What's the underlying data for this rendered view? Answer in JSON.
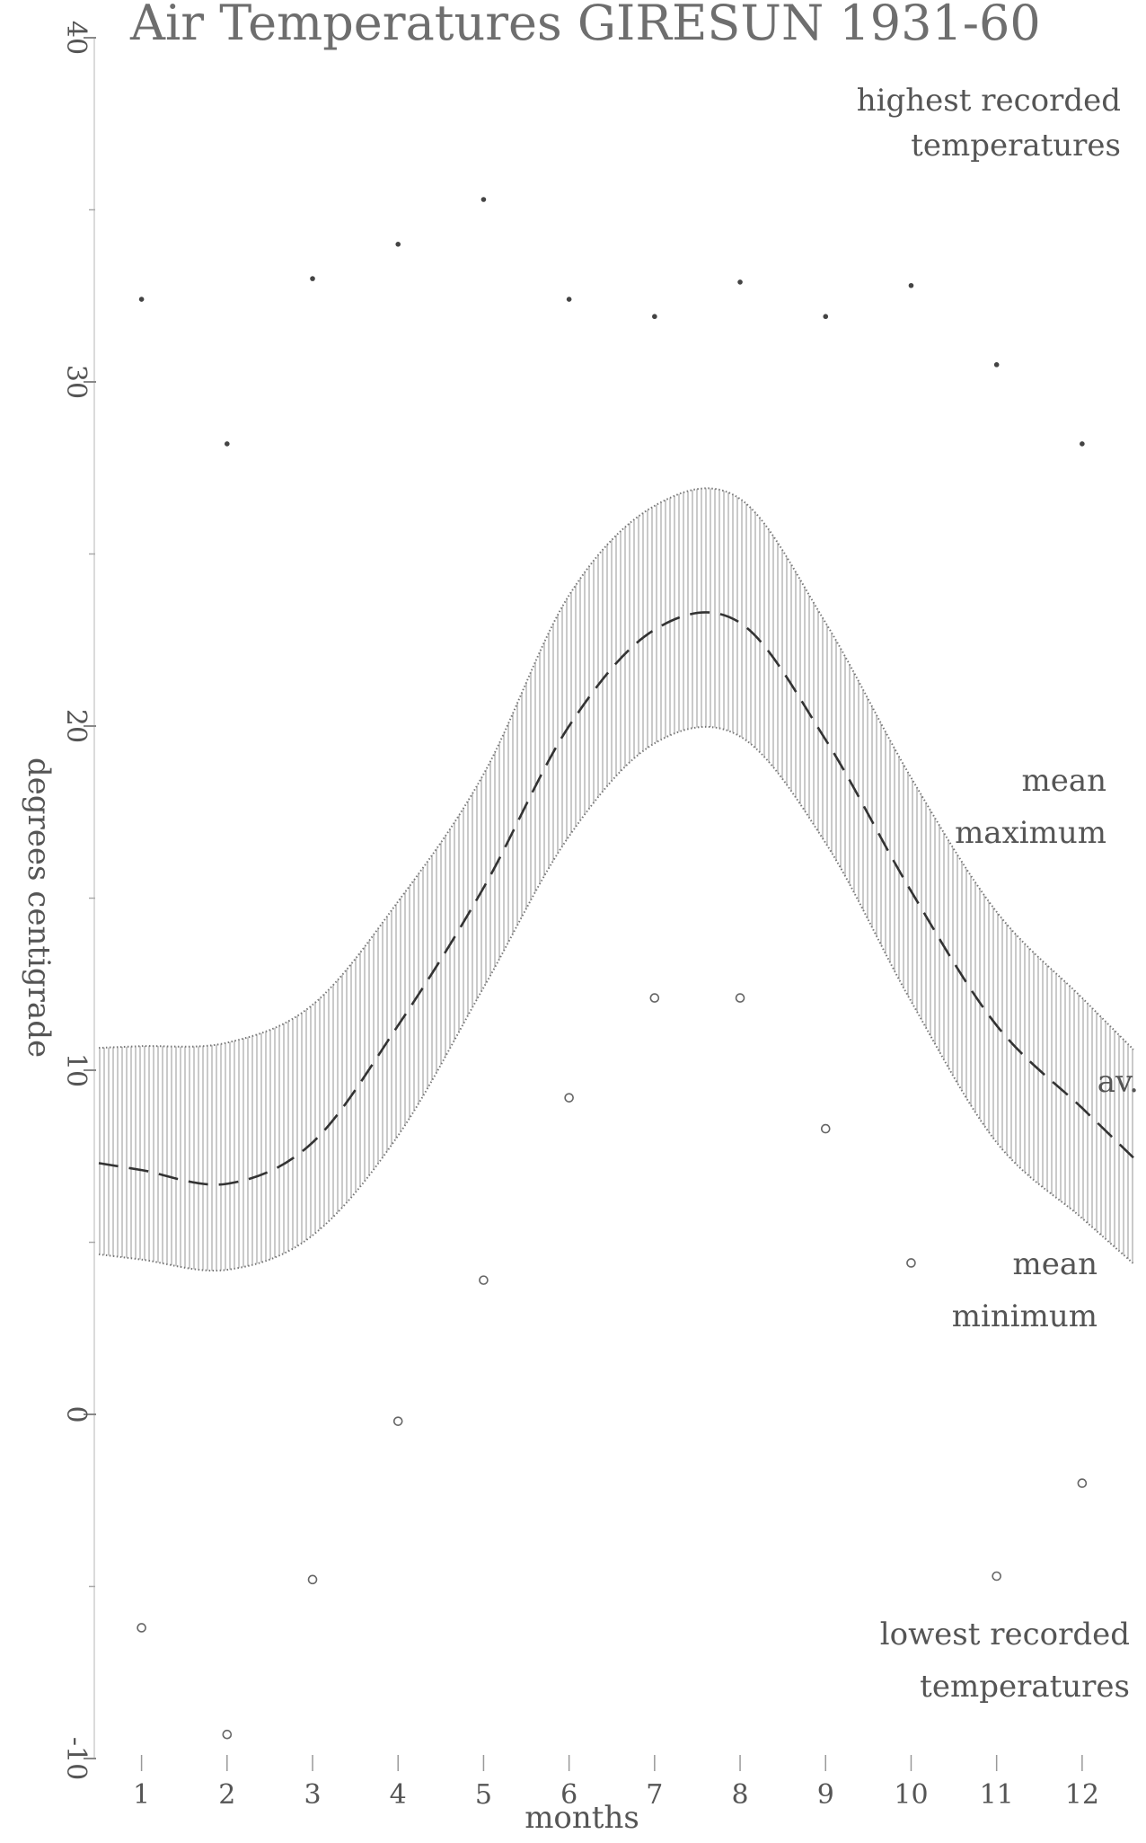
{
  "chart_data": {
    "type": "line",
    "title": "Air Temperatures GIRESUN 1931-60",
    "xlabel": "months",
    "ylabel": "degrees centigrade",
    "x": [
      1,
      2,
      3,
      4,
      5,
      6,
      7,
      8,
      9,
      10,
      11,
      12
    ],
    "xlim": [
      0.5,
      12.6
    ],
    "ylim": [
      -10,
      40
    ],
    "yticks": [
      -10,
      0,
      10,
      20,
      30,
      40
    ],
    "grid": false,
    "series": [
      {
        "name": "mean maximum",
        "values": [
          10.7,
          10.8,
          11.9,
          14.9,
          18.6,
          23.8,
          26.4,
          26.6,
          23.0,
          18.5,
          14.6,
          12.1
        ]
      },
      {
        "name": "av.",
        "values": [
          7.1,
          6.7,
          7.9,
          11.3,
          15.3,
          20.0,
          22.8,
          23.0,
          19.6,
          15.2,
          11.3,
          8.9
        ]
      },
      {
        "name": "mean minimum",
        "values": [
          4.5,
          4.2,
          5.2,
          8.1,
          12.4,
          16.8,
          19.5,
          19.7,
          16.6,
          12.0,
          7.9,
          5.7
        ]
      },
      {
        "name": "highest recorded temperatures",
        "values": [
          32.4,
          28.2,
          33.0,
          34.0,
          35.3,
          32.4,
          31.9,
          32.9,
          31.9,
          32.8,
          30.5,
          28.2
        ]
      },
      {
        "name": "lowest recorded temperatures",
        "values": [
          -6.2,
          -9.3,
          -4.8,
          -0.2,
          3.9,
          9.2,
          12.1,
          12.1,
          8.3,
          4.4,
          -4.7,
          -2.0
        ]
      }
    ]
  }
}
